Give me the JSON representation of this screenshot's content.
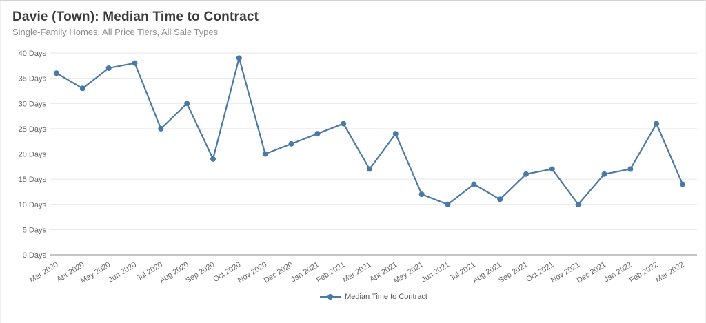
{
  "header": {
    "title": "Davie (Town): Median Time to Contract",
    "subtitle": "Single-Family Homes, All Price Tiers, All Sale Types"
  },
  "chart_data": {
    "type": "line",
    "title": "Davie (Town): Median Time to Contract",
    "subtitle": "Single-Family Homes, All Price Tiers, All Sale Types",
    "categories": [
      "Mar 2020",
      "Apr 2020",
      "May 2020",
      "Jun 2020",
      "Jul 2020",
      "Aug 2020",
      "Sep 2020",
      "Oct 2020",
      "Nov 2020",
      "Dec 2020",
      "Jan 2021",
      "Feb 2021",
      "Mar 2021",
      "Apr 2021",
      "May 2021",
      "Jun 2021",
      "Jul 2021",
      "Aug 2021",
      "Sep 2021",
      "Oct 2021",
      "Nov 2021",
      "Dec 2021",
      "Jan 2022",
      "Feb 2022",
      "Mar 2022"
    ],
    "series": [
      {
        "name": "Median Time to Contract",
        "values": [
          36,
          33,
          37,
          38,
          25,
          30,
          19,
          39,
          20,
          22,
          24,
          26,
          17,
          24,
          12,
          10,
          14,
          11,
          16,
          17,
          10,
          16,
          17,
          26,
          14
        ]
      }
    ],
    "ylim": [
      0,
      40
    ],
    "yticks": [
      {
        "value": 0,
        "label": "0 Days"
      },
      {
        "value": 5,
        "label": "5 Days"
      },
      {
        "value": 10,
        "label": "10 Days"
      },
      {
        "value": 15,
        "label": "15 Days"
      },
      {
        "value": 20,
        "label": "20 Days"
      },
      {
        "value": 25,
        "label": "25 Days"
      },
      {
        "value": 30,
        "label": "30 Days"
      },
      {
        "value": 35,
        "label": "35 Days"
      },
      {
        "value": 40,
        "label": "40 Days"
      }
    ],
    "grid": true,
    "legend_position": "bottom",
    "colors": {
      "line": "#4a79a5",
      "grid": "#e6e6e6",
      "axis_line": "#8a8a8a",
      "tick_text": "#666666",
      "title_text": "#3b3b3b",
      "subtitle_text": "#8e8e8e",
      "legend_text": "#555555"
    }
  }
}
